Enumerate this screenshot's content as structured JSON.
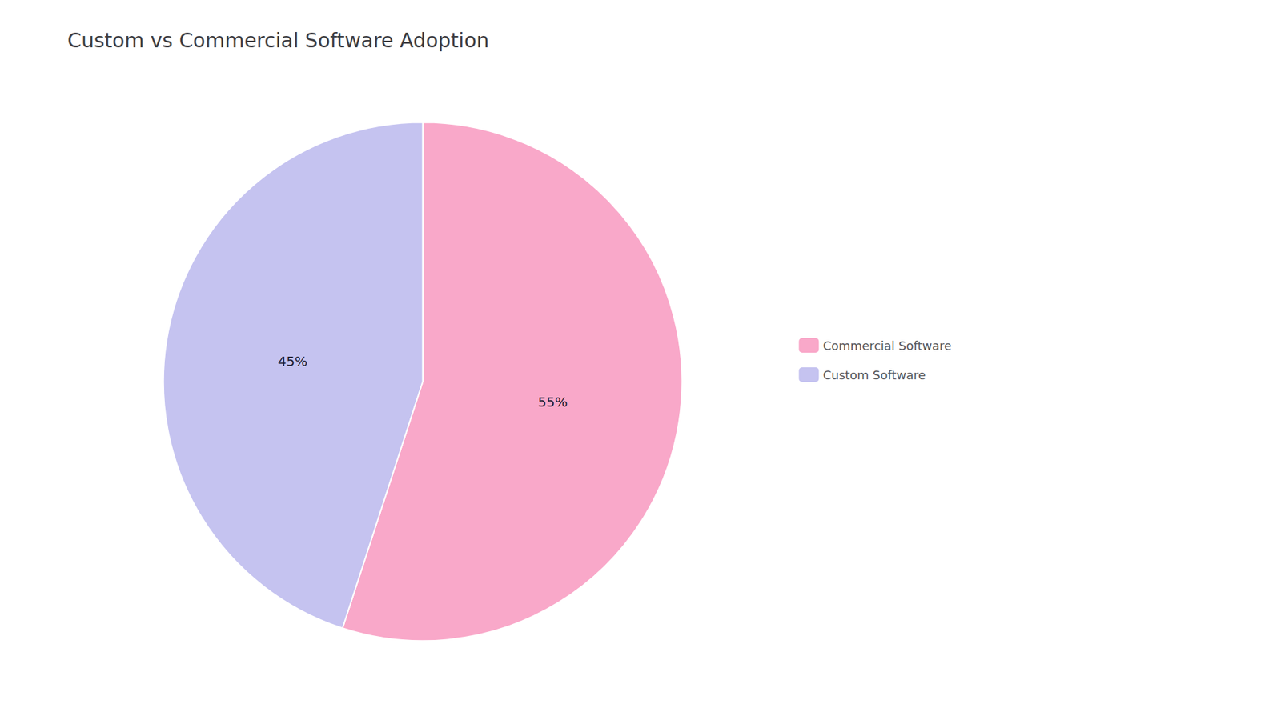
{
  "chart_data": {
    "type": "pie",
    "title": "Custom vs Commercial Software Adoption",
    "categories": [
      "Commercial Software",
      "Custom Software"
    ],
    "values": [
      55,
      45
    ],
    "value_labels": [
      "55%",
      "45%"
    ],
    "colors": [
      "#F9A8C9",
      "#C5C3F0"
    ],
    "data_labels": true,
    "legend": "right"
  }
}
